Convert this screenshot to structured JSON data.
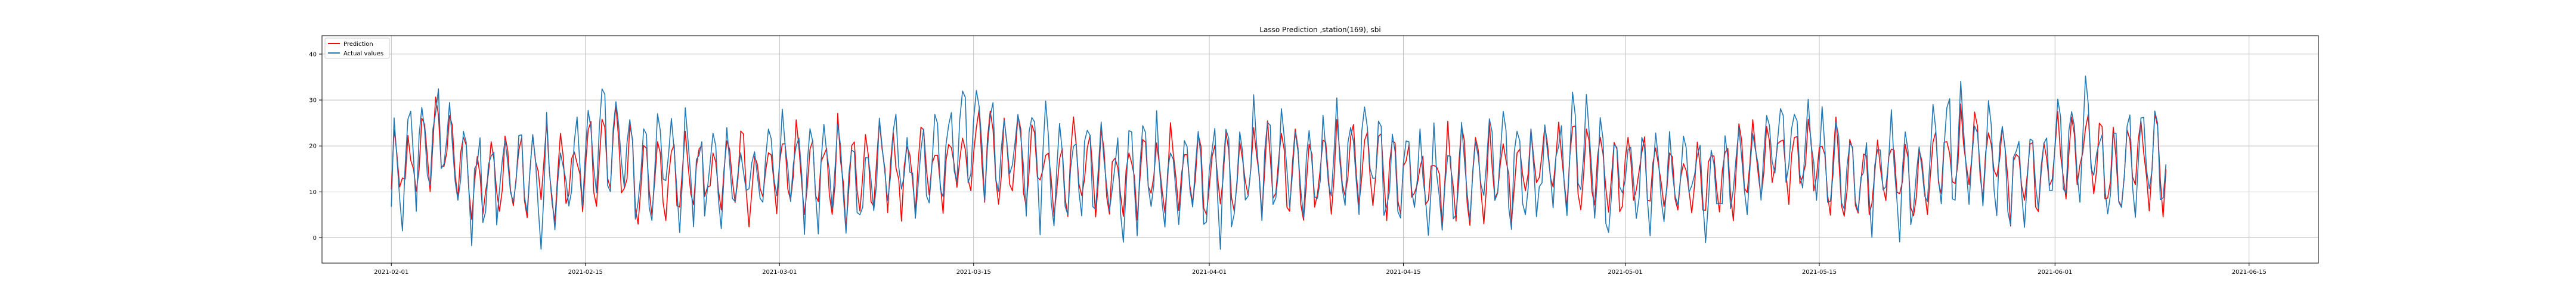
{
  "chart_data": {
    "type": "line",
    "title": "Lasso Prediction ,station(169), sbi",
    "xlabel": "",
    "ylabel": "",
    "x_range": [
      "2021-01-27",
      "2021-06-20"
    ],
    "x_data_range": [
      "2021-02-01",
      "2021-06-09"
    ],
    "xticks": [
      "2021-02-01",
      "2021-02-15",
      "2021-03-01",
      "2021-03-15",
      "2021-04-01",
      "2021-04-15",
      "2021-05-01",
      "2021-05-15",
      "2021-06-01",
      "2021-06-15"
    ],
    "ylim": [
      -5.5,
      44
    ],
    "yticks": [
      0,
      10,
      20,
      30,
      40
    ],
    "grid": true,
    "legend_position": "upper-left",
    "series": [
      {
        "name": "Prediction",
        "color": "#ff0000",
        "points": [
          [
            "2021-02-01",
            12
          ],
          [
            "2021-02-03",
            18
          ],
          [
            "2021-02-05",
            20
          ],
          [
            "2021-02-07",
            12
          ],
          [
            "2021-02-09",
            14
          ],
          [
            "2021-02-11",
            15
          ],
          [
            "2021-02-13",
            12
          ],
          [
            "2021-02-15",
            17
          ],
          [
            "2021-02-17",
            19
          ],
          [
            "2021-02-19",
            13
          ],
          [
            "2021-02-21",
            16
          ],
          [
            "2021-02-23",
            14
          ],
          [
            "2021-02-25",
            15
          ],
          [
            "2021-02-27",
            13
          ],
          [
            "2021-03-01",
            16
          ],
          [
            "2021-03-03",
            14
          ],
          [
            "2021-03-05",
            15
          ],
          [
            "2021-03-07",
            12
          ],
          [
            "2021-03-09",
            16
          ],
          [
            "2021-03-11",
            14
          ],
          [
            "2021-03-13",
            17
          ],
          [
            "2021-03-15",
            21
          ],
          [
            "2021-03-17",
            16
          ],
          [
            "2021-03-19",
            17
          ],
          [
            "2021-03-21",
            14
          ],
          [
            "2021-03-23",
            16
          ],
          [
            "2021-03-25",
            13
          ],
          [
            "2021-03-27",
            15
          ],
          [
            "2021-03-29",
            14
          ],
          [
            "2021-03-31",
            13
          ],
          [
            "2021-04-02",
            14
          ],
          [
            "2021-04-04",
            16
          ],
          [
            "2021-04-06",
            15
          ],
          [
            "2021-04-08",
            14
          ],
          [
            "2021-04-10",
            15
          ],
          [
            "2021-04-12",
            17
          ],
          [
            "2021-04-14",
            14
          ],
          [
            "2021-04-16",
            13
          ],
          [
            "2021-04-18",
            14
          ],
          [
            "2021-04-20",
            12
          ],
          [
            "2021-04-22",
            15
          ],
          [
            "2021-04-24",
            14
          ],
          [
            "2021-04-26",
            16
          ],
          [
            "2021-04-28",
            15
          ],
          [
            "2021-04-30",
            13
          ],
          [
            "2021-05-02",
            14
          ],
          [
            "2021-05-04",
            13
          ],
          [
            "2021-05-06",
            14
          ],
          [
            "2021-05-08",
            12
          ],
          [
            "2021-05-10",
            15
          ],
          [
            "2021-05-12",
            17
          ],
          [
            "2021-05-14",
            19
          ],
          [
            "2021-05-16",
            14
          ],
          [
            "2021-05-18",
            13
          ],
          [
            "2021-05-20",
            15
          ],
          [
            "2021-05-22",
            11
          ],
          [
            "2021-05-24",
            18
          ],
          [
            "2021-05-26",
            19
          ],
          [
            "2021-05-28",
            15
          ],
          [
            "2021-05-30",
            14
          ],
          [
            "2021-06-01",
            16
          ],
          [
            "2021-06-03",
            19
          ],
          [
            "2021-06-05",
            13
          ],
          [
            "2021-06-07",
            18
          ],
          [
            "2021-06-09",
            15
          ]
        ]
      },
      {
        "name": "Actual values",
        "color": "#1f77b4",
        "points": [
          [
            "2021-02-01",
            11
          ],
          [
            "2021-02-03",
            20
          ],
          [
            "2021-02-05",
            22
          ],
          [
            "2021-02-07",
            11
          ],
          [
            "2021-02-09",
            15
          ],
          [
            "2021-02-11",
            14
          ],
          [
            "2021-02-13",
            11
          ],
          [
            "2021-02-15",
            18
          ],
          [
            "2021-02-17",
            21
          ],
          [
            "2021-02-19",
            12
          ],
          [
            "2021-02-21",
            17
          ],
          [
            "2021-02-23",
            13
          ],
          [
            "2021-02-25",
            16
          ],
          [
            "2021-02-27",
            12
          ],
          [
            "2021-03-01",
            17
          ],
          [
            "2021-03-03",
            13
          ],
          [
            "2021-03-05",
            16
          ],
          [
            "2021-03-07",
            11
          ],
          [
            "2021-03-09",
            17
          ],
          [
            "2021-03-11",
            13
          ],
          [
            "2021-03-13",
            19
          ],
          [
            "2021-03-15",
            24
          ],
          [
            "2021-03-17",
            17
          ],
          [
            "2021-03-19",
            19
          ],
          [
            "2021-03-21",
            13
          ],
          [
            "2021-03-23",
            17
          ],
          [
            "2021-03-25",
            12
          ],
          [
            "2021-03-27",
            16
          ],
          [
            "2021-03-29",
            13
          ],
          [
            "2021-03-31",
            12
          ],
          [
            "2021-04-02",
            13
          ],
          [
            "2021-04-04",
            17
          ],
          [
            "2021-04-06",
            16
          ],
          [
            "2021-04-08",
            13
          ],
          [
            "2021-04-10",
            16
          ],
          [
            "2021-04-12",
            19
          ],
          [
            "2021-04-14",
            13
          ],
          [
            "2021-04-16",
            12
          ],
          [
            "2021-04-18",
            13
          ],
          [
            "2021-04-20",
            11
          ],
          [
            "2021-04-22",
            16
          ],
          [
            "2021-04-24",
            13
          ],
          [
            "2021-04-26",
            18
          ],
          [
            "2021-04-28",
            16
          ],
          [
            "2021-04-30",
            12
          ],
          [
            "2021-05-02",
            13
          ],
          [
            "2021-05-04",
            12
          ],
          [
            "2021-05-06",
            13
          ],
          [
            "2021-05-08",
            11
          ],
          [
            "2021-05-10",
            16
          ],
          [
            "2021-05-12",
            19
          ],
          [
            "2021-05-14",
            22
          ],
          [
            "2021-05-16",
            13
          ],
          [
            "2021-05-18",
            12
          ],
          [
            "2021-05-20",
            16
          ],
          [
            "2021-05-22",
            10
          ],
          [
            "2021-05-24",
            20
          ],
          [
            "2021-05-26",
            21
          ],
          [
            "2021-05-28",
            16
          ],
          [
            "2021-05-30",
            13
          ],
          [
            "2021-06-01",
            17
          ],
          [
            "2021-06-03",
            21
          ],
          [
            "2021-06-05",
            12
          ],
          [
            "2021-06-07",
            20
          ],
          [
            "2021-06-09",
            16
          ]
        ]
      }
    ]
  }
}
